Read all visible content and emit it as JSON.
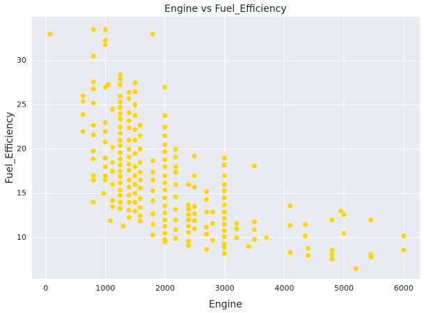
{
  "chart_data": {
    "type": "scatter",
    "title": "Engine vs Fuel_Efficiency",
    "x_label": "Engine",
    "y_label": "Fuel_Efficiency",
    "xlim": [
      -230,
      6270
    ],
    "ylim": [
      5.35,
      34.95
    ],
    "xticks": [
      0,
      1000,
      2000,
      3000,
      4000,
      5000,
      6000
    ],
    "yticks": [
      10,
      15,
      20,
      25,
      30
    ],
    "grid": true,
    "series": [
      {
        "color": "#ffd700",
        "x": [
          72,
          800,
          1000,
          1000,
          1000,
          1796,
          800,
          800,
          800,
          800,
          624,
          624,
          624,
          624,
          800,
          800,
          800,
          800,
          800,
          800,
          800,
          970,
          1000,
          1050,
          1086,
          1298,
          998,
          998,
          998,
          998,
          998,
          998,
          998,
          1120,
          1120,
          1120,
          1120,
          1120,
          1120,
          1120,
          1248,
          1248,
          1248,
          1248,
          1248,
          1248,
          1248,
          1248,
          1248,
          1248,
          1248,
          1248,
          1248,
          1248,
          1248,
          1248,
          1248,
          1248,
          1248,
          1248,
          1248,
          1248,
          1396,
          1396,
          1396,
          1396,
          1396,
          1396,
          1396,
          1396,
          1396,
          1396,
          1396,
          1396,
          1396,
          1396,
          1396,
          1396,
          1498,
          1498,
          1498,
          1498,
          1498,
          1498,
          1498,
          1498,
          1498,
          1498,
          1498,
          1498,
          1498,
          1582,
          1582,
          1582,
          1582,
          1582,
          1582,
          1582,
          1582,
          1582,
          1582,
          1582,
          1796,
          1796,
          1796,
          1796,
          1796,
          1796,
          1796,
          1796,
          1998,
          1998,
          1998,
          1998,
          1998,
          1998,
          1998,
          1998,
          1998,
          1998,
          1998,
          1998,
          1998,
          1998,
          1998,
          1998,
          1998,
          1998,
          1998,
          2179,
          2179,
          2179,
          2179,
          2179,
          2179,
          2179,
          2179,
          2179,
          2179,
          2393,
          2393,
          2393,
          2393,
          2393,
          2393,
          2393,
          2393,
          2393,
          2494,
          2494,
          2494,
          2494,
          2494,
          2494,
          2494,
          2696,
          2696,
          2696,
          2696,
          2696,
          2696,
          2800,
          2800,
          2800,
          2993,
          2993,
          2993,
          2993,
          2993,
          2993,
          2993,
          2993,
          2993,
          2993,
          2993,
          2993,
          2993,
          2993,
          2993,
          3200,
          3200,
          3200,
          3400,
          3500,
          3500,
          3500,
          3500,
          3700,
          4100,
          4100,
          4100,
          4350,
          4350,
          4400,
          4400,
          4800,
          4800,
          4800,
          4800,
          4950,
          5000,
          5000,
          5200,
          5450,
          5450,
          5450,
          6000,
          6000
        ],
        "values": [
          33,
          33.5,
          33.5,
          32.3,
          31.8,
          33,
          30.5,
          27.6,
          26.8,
          25.2,
          26,
          25.4,
          23.9,
          22,
          22.7,
          21.6,
          19.8,
          18.9,
          17,
          16.5,
          14,
          15,
          27,
          27.3,
          11.9,
          11.3,
          23,
          22,
          20.8,
          19,
          18,
          17,
          16.5,
          24.5,
          20.2,
          18.5,
          17.5,
          16,
          13.5,
          14.2,
          28.4,
          27.9,
          27.3,
          26,
          25.3,
          24.7,
          24,
          23.4,
          22.5,
          21.8,
          21,
          20.4,
          19.6,
          18.9,
          18.2,
          17.5,
          16.9,
          16.2,
          15.4,
          14.8,
          14,
          13.3,
          26.4,
          25.7,
          24.1,
          23.2,
          22.4,
          21,
          20,
          19.1,
          18.3,
          17.6,
          16.5,
          15.7,
          14.8,
          14,
          13.1,
          12.3,
          27.5,
          26.5,
          25,
          23.8,
          22.2,
          21,
          19.5,
          18,
          17,
          16,
          15,
          14,
          13,
          22.7,
          21.5,
          20,
          18.5,
          17.4,
          16.5,
          15.6,
          14.4,
          13.4,
          12.5,
          11.9,
          18.7,
          17.4,
          16.5,
          15.3,
          14.2,
          12.7,
          11.5,
          10.3,
          27,
          23.8,
          22.5,
          21.5,
          20.5,
          19.7,
          18.8,
          18,
          17,
          16.2,
          15.4,
          14.5,
          13.6,
          12.8,
          12,
          11.3,
          10.5,
          9.8,
          9.5,
          20,
          19.1,
          18,
          17.4,
          16,
          14.6,
          13.2,
          12,
          10.9,
          9.9,
          13.7,
          13.2,
          12.6,
          12,
          11.3,
          10.6,
          9.6,
          9.1,
          16,
          19.2,
          17,
          15.7,
          13.5,
          12.7,
          11.9,
          11,
          15.2,
          14.3,
          12.9,
          11.2,
          10.4,
          8.7,
          12.9,
          11.6,
          9.7,
          19,
          18.2,
          17,
          16,
          15.3,
          14.5,
          13.7,
          12.9,
          12.2,
          11.5,
          10.8,
          10.1,
          9.3,
          8.9,
          8.2,
          11.6,
          11,
          10,
          9,
          18.1,
          11.8,
          10.9,
          9.8,
          10,
          13.6,
          11.4,
          8.3,
          11.5,
          10.2,
          8.8,
          8,
          12,
          8.6,
          8.1,
          7.6,
          13,
          12.6,
          10.5,
          6.5,
          12,
          8.1,
          7.8,
          10.2,
          8.6
        ]
      }
    ]
  }
}
